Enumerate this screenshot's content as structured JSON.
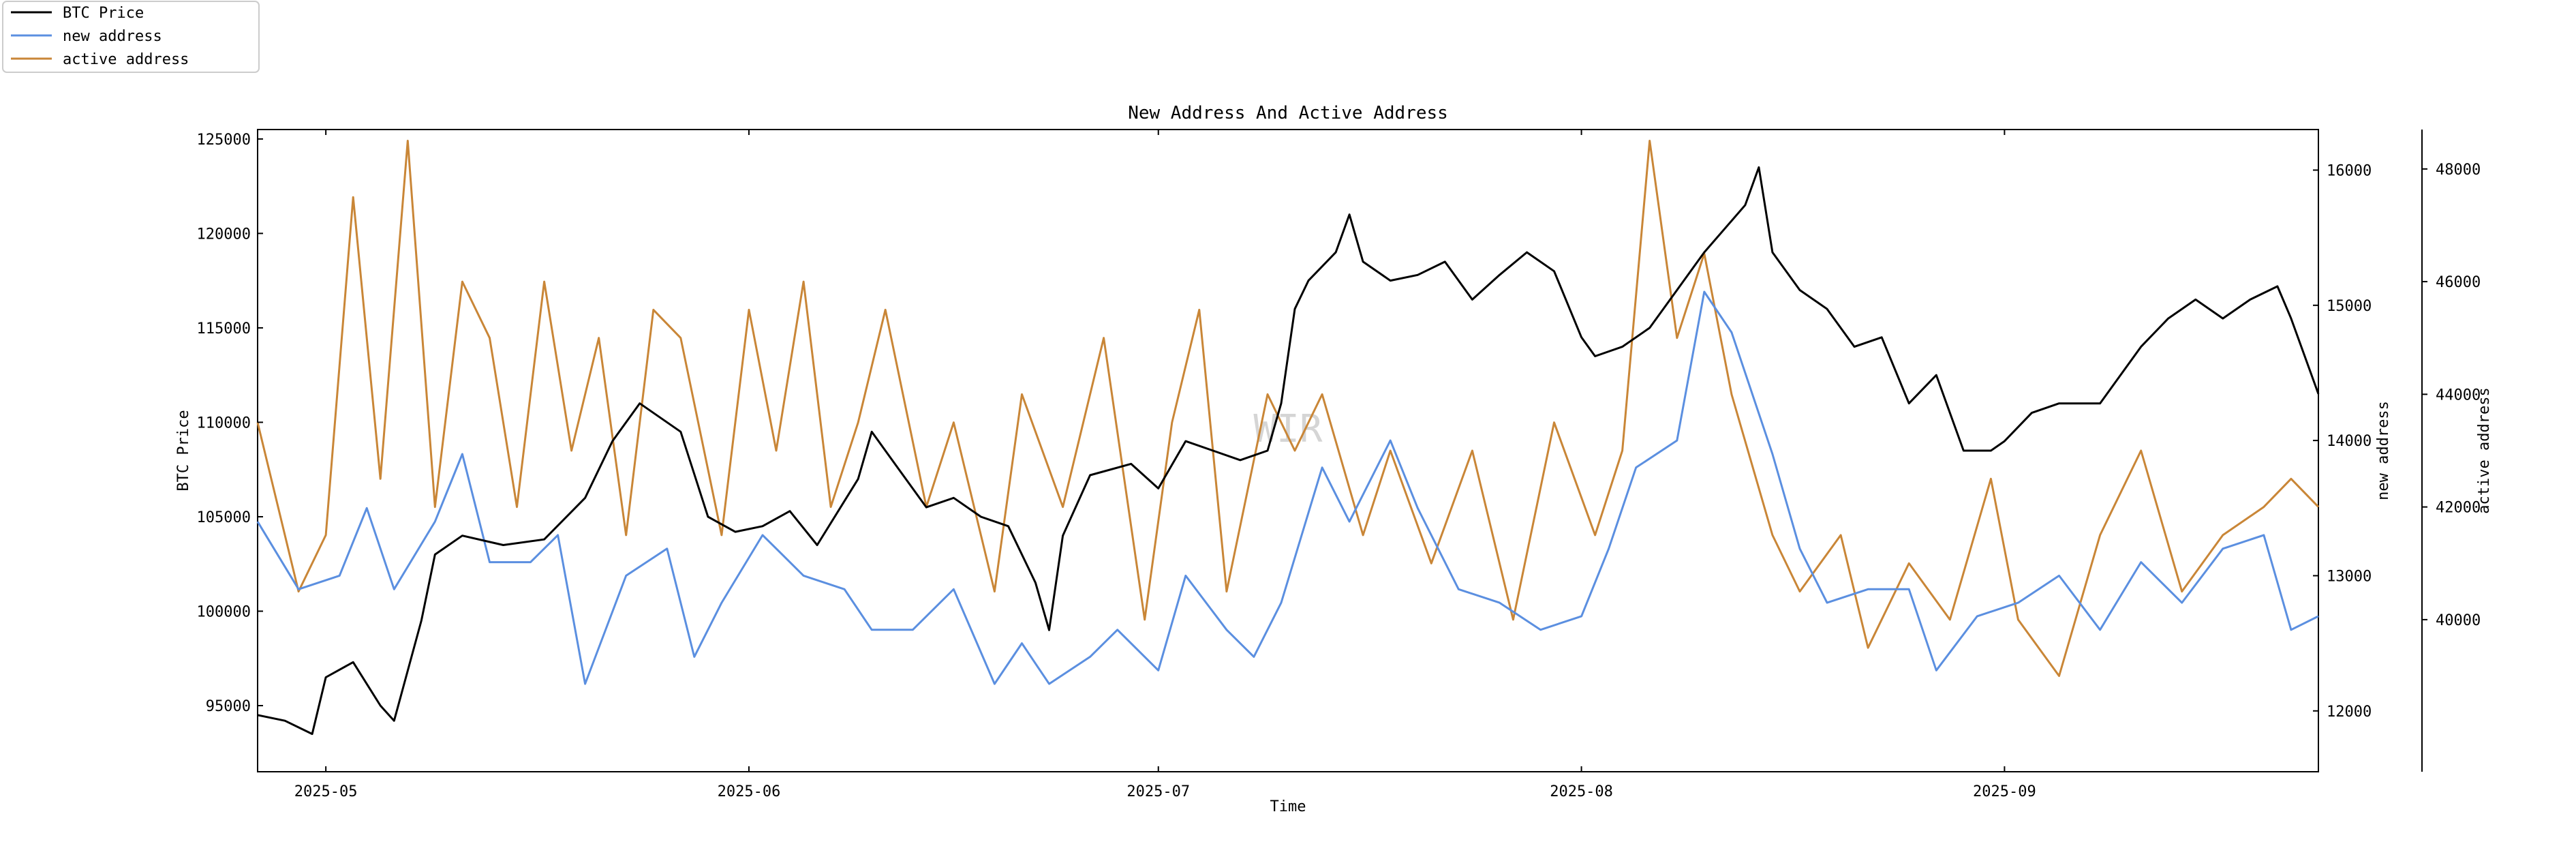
{
  "chart_data": {
    "type": "line",
    "title": "New Address And Active Address",
    "xlabel": "Time",
    "ylabel": "BTC Price",
    "y2label": "new address",
    "y3label": "active address",
    "watermark": "WIR",
    "x_range": [
      "2025-04-26",
      "2025-09-24"
    ],
    "x_ticks": [
      "2025-05",
      "2025-06",
      "2025-07",
      "2025-08",
      "2025-09"
    ],
    "y_ticks": [
      "95000",
      "100000",
      "105000",
      "110000",
      "115000",
      "120000",
      "125000"
    ],
    "y2_ticks": [
      "12000",
      "13000",
      "14000",
      "15000",
      "16000"
    ],
    "y3_ticks": [
      "40000",
      "42000",
      "44000",
      "46000",
      "48000"
    ],
    "ylim": [
      91500,
      125500
    ],
    "y2lim": [
      11550,
      16300
    ],
    "y3lim": [
      37300,
      48700
    ],
    "legend_position": "top-left outside",
    "series": [
      {
        "name": "BTC Price",
        "axis": "left",
        "color": "#000000",
        "x": [
          "2025-04-26",
          "2025-04-28",
          "2025-04-30",
          "2025-05-01",
          "2025-05-03",
          "2025-05-05",
          "2025-05-06",
          "2025-05-08",
          "2025-05-09",
          "2025-05-11",
          "2025-05-14",
          "2025-05-17",
          "2025-05-20",
          "2025-05-22",
          "2025-05-24",
          "2025-05-27",
          "2025-05-29",
          "2025-05-31",
          "2025-06-02",
          "2025-06-04",
          "2025-06-06",
          "2025-06-09",
          "2025-06-10",
          "2025-06-12",
          "2025-06-14",
          "2025-06-16",
          "2025-06-18",
          "2025-06-20",
          "2025-06-22",
          "2025-06-23",
          "2025-06-24",
          "2025-06-26",
          "2025-06-29",
          "2025-07-01",
          "2025-07-03",
          "2025-07-05",
          "2025-07-07",
          "2025-07-09",
          "2025-07-10",
          "2025-07-11",
          "2025-07-12",
          "2025-07-14",
          "2025-07-15",
          "2025-07-16",
          "2025-07-18",
          "2025-07-20",
          "2025-07-22",
          "2025-07-24",
          "2025-07-26",
          "2025-07-28",
          "2025-07-30",
          "2025-08-01",
          "2025-08-02",
          "2025-08-04",
          "2025-08-06",
          "2025-08-08",
          "2025-08-10",
          "2025-08-13",
          "2025-08-14",
          "2025-08-15",
          "2025-08-17",
          "2025-08-19",
          "2025-08-21",
          "2025-08-23",
          "2025-08-25",
          "2025-08-27",
          "2025-08-29",
          "2025-08-31",
          "2025-09-01",
          "2025-09-03",
          "2025-09-05",
          "2025-09-08",
          "2025-09-11",
          "2025-09-13",
          "2025-09-15",
          "2025-09-17",
          "2025-09-19",
          "2025-09-21",
          "2025-09-22",
          "2025-09-24"
        ],
        "values": [
          94500,
          94200,
          93500,
          96500,
          97300,
          95000,
          94200,
          99500,
          103000,
          104000,
          103500,
          103800,
          106000,
          109000,
          111000,
          109500,
          105000,
          104200,
          104500,
          105300,
          103500,
          107000,
          109500,
          107500,
          105500,
          106000,
          105000,
          104500,
          101500,
          99000,
          104000,
          107200,
          107800,
          106500,
          109000,
          108500,
          108000,
          108500,
          111000,
          116000,
          117500,
          119000,
          121000,
          118500,
          117500,
          117800,
          118500,
          116500,
          117800,
          119000,
          118000,
          114500,
          113500,
          114000,
          115000,
          117000,
          119000,
          121500,
          123500,
          119000,
          117000,
          116000,
          114000,
          114500,
          111000,
          112500,
          108500,
          108500,
          109000,
          110500,
          111000,
          111000,
          114000,
          115500,
          116500,
          115500,
          116500,
          117200,
          115500,
          111500
        ]
      },
      {
        "name": "new address",
        "axis": "right",
        "color": "#5b8fe0",
        "x": [
          "2025-04-26",
          "2025-04-29",
          "2025-05-02",
          "2025-05-04",
          "2025-05-06",
          "2025-05-09",
          "2025-05-11",
          "2025-05-13",
          "2025-05-16",
          "2025-05-18",
          "2025-05-20",
          "2025-05-23",
          "2025-05-26",
          "2025-05-28",
          "2025-05-30",
          "2025-06-02",
          "2025-06-05",
          "2025-06-08",
          "2025-06-10",
          "2025-06-13",
          "2025-06-16",
          "2025-06-19",
          "2025-06-21",
          "2025-06-23",
          "2025-06-26",
          "2025-06-28",
          "2025-07-01",
          "2025-07-03",
          "2025-07-06",
          "2025-07-08",
          "2025-07-10",
          "2025-07-13",
          "2025-07-15",
          "2025-07-18",
          "2025-07-20",
          "2025-07-23",
          "2025-07-26",
          "2025-07-29",
          "2025-08-01",
          "2025-08-03",
          "2025-08-05",
          "2025-08-08",
          "2025-08-10",
          "2025-08-12",
          "2025-08-15",
          "2025-08-17",
          "2025-08-19",
          "2025-08-22",
          "2025-08-25",
          "2025-08-27",
          "2025-08-30",
          "2025-09-02",
          "2025-09-05",
          "2025-09-08",
          "2025-09-11",
          "2025-09-14",
          "2025-09-17",
          "2025-09-20",
          "2025-09-22",
          "2025-09-24"
        ],
        "values": [
          13400,
          12900,
          13000,
          13500,
          12900,
          13400,
          13900,
          13100,
          13100,
          13300,
          12200,
          13000,
          13200,
          12400,
          12800,
          13300,
          13000,
          12900,
          12600,
          12600,
          12900,
          12200,
          12500,
          12200,
          12400,
          12600,
          12300,
          13000,
          12600,
          12400,
          12800,
          13800,
          13400,
          14000,
          13500,
          12900,
          12800,
          12600,
          12700,
          13200,
          13800,
          14000,
          15100,
          14800,
          13900,
          13200,
          12800,
          12900,
          12900,
          12300,
          12700,
          12800,
          13000,
          12600,
          13100,
          12800,
          13200,
          13300,
          12600,
          12700
        ]
      },
      {
        "name": "active address",
        "axis": "right2",
        "color": "#c98637",
        "x": [
          "2025-04-26",
          "2025-04-29",
          "2025-05-01",
          "2025-05-03",
          "2025-05-05",
          "2025-05-07",
          "2025-05-09",
          "2025-05-11",
          "2025-05-13",
          "2025-05-15",
          "2025-05-17",
          "2025-05-19",
          "2025-05-21",
          "2025-05-23",
          "2025-05-25",
          "2025-05-27",
          "2025-05-30",
          "2025-06-01",
          "2025-06-03",
          "2025-06-05",
          "2025-06-07",
          "2025-06-09",
          "2025-06-11",
          "2025-06-14",
          "2025-06-16",
          "2025-06-19",
          "2025-06-21",
          "2025-06-24",
          "2025-06-27",
          "2025-06-30",
          "2025-07-02",
          "2025-07-04",
          "2025-07-06",
          "2025-07-09",
          "2025-07-11",
          "2025-07-13",
          "2025-07-16",
          "2025-07-18",
          "2025-07-21",
          "2025-07-24",
          "2025-07-27",
          "2025-07-30",
          "2025-08-02",
          "2025-08-04",
          "2025-08-06",
          "2025-08-08",
          "2025-08-10",
          "2025-08-12",
          "2025-08-15",
          "2025-08-17",
          "2025-08-20",
          "2025-08-22",
          "2025-08-25",
          "2025-08-28",
          "2025-08-31",
          "2025-09-02",
          "2025-09-05",
          "2025-09-08",
          "2025-09-11",
          "2025-09-14",
          "2025-09-17",
          "2025-09-20",
          "2025-09-22",
          "2025-09-24"
        ],
        "values": [
          43500,
          40500,
          41500,
          47500,
          42500,
          48500,
          42000,
          46000,
          45000,
          42000,
          46000,
          43000,
          45000,
          41500,
          45500,
          45000,
          41500,
          45500,
          43000,
          46000,
          42000,
          43500,
          45500,
          42000,
          43500,
          40500,
          44000,
          42000,
          45000,
          40000,
          43500,
          45500,
          40500,
          44000,
          43000,
          44000,
          41500,
          43000,
          41000,
          43000,
          40000,
          43500,
          41500,
          43000,
          48500,
          45000,
          46500,
          44000,
          41500,
          40500,
          41500,
          39500,
          41000,
          40000,
          42500,
          40000,
          39000,
          41500,
          43000,
          40500,
          41500,
          42000,
          42500,
          42000
        ]
      }
    ]
  }
}
